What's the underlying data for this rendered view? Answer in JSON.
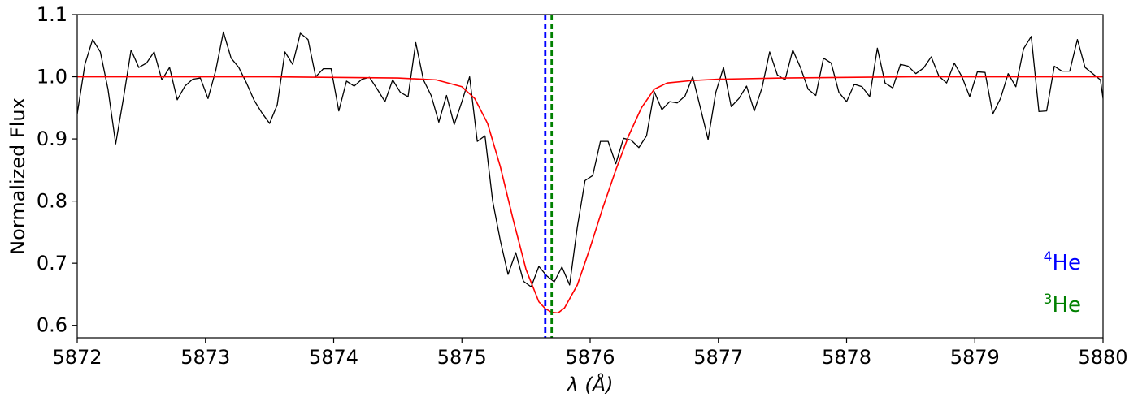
{
  "chart_data": {
    "type": "line",
    "xlabel": "λ (Å)",
    "ylabel": "Normalized Flux",
    "xlim": [
      5872,
      5880
    ],
    "ylim": [
      0.58,
      1.1
    ],
    "xticks": [
      "5872",
      "5873",
      "5874",
      "5875",
      "5876",
      "5877",
      "5878",
      "5879",
      "5880"
    ],
    "yticks": [
      "0.6",
      "0.7",
      "0.8",
      "0.9",
      "1.0",
      "1.1"
    ],
    "grid": false,
    "series": [
      {
        "role": "observed",
        "color": "#000000",
        "x": [
          5872.0,
          5872.06,
          5872.12,
          5872.18,
          5872.24,
          5872.3,
          5872.36,
          5872.42,
          5872.48,
          5872.54,
          5872.6,
          5872.66,
          5872.72,
          5872.78,
          5872.84,
          5872.9,
          5872.96,
          5873.02,
          5873.08,
          5873.14,
          5873.2,
          5873.26,
          5873.32,
          5873.38,
          5873.44,
          5873.5,
          5873.56,
          5873.62,
          5873.68,
          5873.74,
          5873.8,
          5873.86,
          5873.92,
          5873.98,
          5874.04,
          5874.1,
          5874.16,
          5874.22,
          5874.28,
          5874.34,
          5874.4,
          5874.46,
          5874.52,
          5874.58,
          5874.64,
          5874.7,
          5874.76,
          5874.82,
          5874.88,
          5874.94,
          5875.0,
          5875.06,
          5875.12,
          5875.18,
          5875.24,
          5875.3,
          5875.36,
          5875.42,
          5875.48,
          5875.54,
          5875.6,
          5875.66,
          5875.72,
          5875.78,
          5875.84,
          5875.9,
          5875.96,
          5876.02,
          5876.08,
          5876.14,
          5876.2,
          5876.26,
          5876.32,
          5876.38,
          5876.44,
          5876.5,
          5876.56,
          5876.62,
          5876.68,
          5876.74,
          5876.8,
          5876.86,
          5876.92,
          5876.98,
          5877.04,
          5877.1,
          5877.16,
          5877.22,
          5877.28,
          5877.34,
          5877.4,
          5877.46,
          5877.52,
          5877.58,
          5877.64,
          5877.7,
          5877.76,
          5877.82,
          5877.88,
          5877.94,
          5878.0,
          5878.06,
          5878.12,
          5878.18,
          5878.24,
          5878.3,
          5878.36,
          5878.42,
          5878.48,
          5878.54,
          5878.6,
          5878.66,
          5878.72,
          5878.78,
          5878.84,
          5878.9,
          5878.96,
          5879.02,
          5879.08,
          5879.14,
          5879.2,
          5879.26,
          5879.32,
          5879.38,
          5879.44,
          5879.5,
          5879.56,
          5879.62,
          5879.68,
          5879.74,
          5879.8,
          5879.86,
          5879.92,
          5879.98,
          5880.0
        ],
        "y": [
          0.94,
          1.02,
          1.06,
          1.04,
          0.98,
          0.892,
          0.965,
          1.043,
          1.015,
          1.022,
          1.04,
          0.995,
          1.015,
          0.963,
          0.985,
          0.996,
          0.998,
          0.965,
          1.01,
          1.072,
          1.03,
          1.015,
          0.99,
          0.962,
          0.942,
          0.925,
          0.955,
          1.04,
          1.02,
          1.07,
          1.06,
          1.0,
          1.013,
          1.013,
          0.945,
          0.993,
          0.985,
          0.996,
          0.999,
          0.98,
          0.96,
          0.995,
          0.975,
          0.968,
          1.055,
          0.995,
          0.97,
          0.927,
          0.97,
          0.923,
          0.96,
          1.0,
          0.896,
          0.905,
          0.8,
          0.736,
          0.682,
          0.717,
          0.671,
          0.662,
          0.695,
          0.68,
          0.67,
          0.694,
          0.665,
          0.758,
          0.833,
          0.841,
          0.896,
          0.896,
          0.86,
          0.901,
          0.898,
          0.886,
          0.905,
          0.976,
          0.947,
          0.96,
          0.958,
          0.969,
          1.0,
          0.95,
          0.899,
          0.975,
          1.015,
          0.952,
          0.965,
          0.985,
          0.945,
          0.982,
          1.04,
          1.003,
          0.995,
          1.043,
          1.015,
          0.98,
          0.97,
          1.03,
          1.022,
          0.975,
          0.96,
          0.988,
          0.984,
          0.968,
          1.046,
          0.99,
          0.982,
          1.02,
          1.017,
          1.005,
          1.014,
          1.032,
          1.001,
          0.99,
          1.022,
          1.0,
          0.968,
          1.008,
          1.007,
          0.94,
          0.965,
          1.005,
          0.984,
          1.045,
          1.065,
          0.944,
          0.945,
          1.017,
          1.009,
          1.009,
          1.06,
          1.015,
          1.005,
          0.995,
          0.965
        ]
      },
      {
        "role": "model",
        "color": "#ff0000",
        "x": [
          5872.0,
          5872.5,
          5873.0,
          5873.5,
          5874.0,
          5874.5,
          5874.8,
          5875.0,
          5875.1,
          5875.2,
          5875.3,
          5875.4,
          5875.5,
          5875.6,
          5875.65,
          5875.7,
          5875.75,
          5875.8,
          5875.9,
          5876.0,
          5876.1,
          5876.2,
          5876.3,
          5876.4,
          5876.5,
          5876.6,
          5876.8,
          5877.0,
          5877.5,
          5878.0,
          5878.5,
          5879.0,
          5879.5,
          5880.0
        ],
        "y": [
          1.0,
          1.0,
          1.0,
          1.0,
          0.999,
          0.998,
          0.995,
          0.984,
          0.965,
          0.925,
          0.855,
          0.77,
          0.69,
          0.638,
          0.627,
          0.621,
          0.62,
          0.628,
          0.665,
          0.725,
          0.79,
          0.85,
          0.905,
          0.95,
          0.98,
          0.99,
          0.994,
          0.996,
          0.998,
          0.999,
          1.0,
          1.0,
          1.0,
          1.0
        ]
      }
    ],
    "vlines": [
      {
        "x": 5875.65,
        "color": "#0000ff",
        "style": "dashed"
      },
      {
        "x": 5875.7,
        "color": "#008000",
        "style": "dashed"
      }
    ],
    "legend": {
      "placement": "bottom-right",
      "entries": [
        {
          "sup": "4",
          "label": "He",
          "color": "#0000ff"
        },
        {
          "sup": "3",
          "label": "He",
          "color": "#008000"
        }
      ]
    }
  }
}
